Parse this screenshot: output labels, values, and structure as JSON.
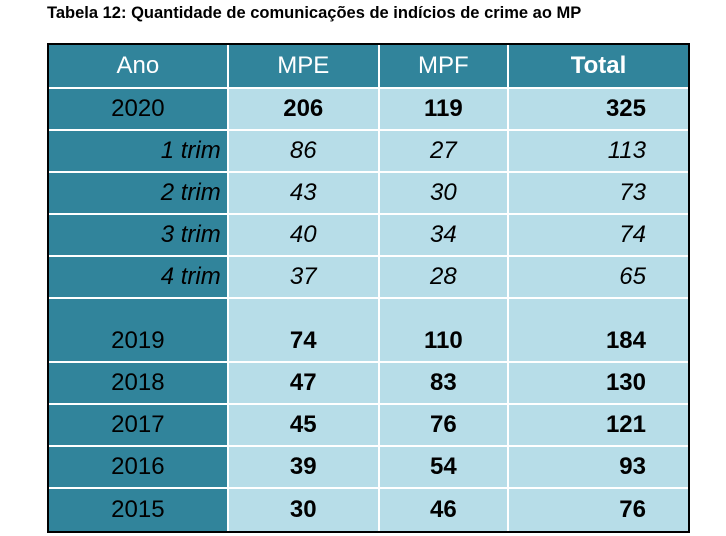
{
  "caption": "Tabela 12: Quantidade de comunicações de indícios de crime ao MP",
  "columns": {
    "ano": "Ano",
    "mpe": "MPE",
    "mpf": "MPF",
    "total": "Total"
  },
  "rows": [
    {
      "label": "2020",
      "mpe": "206",
      "mpf": "119",
      "total": "325"
    },
    {
      "label": "1 trim",
      "mpe": "86",
      "mpf": "27",
      "total": "113"
    },
    {
      "label": "2 trim",
      "mpe": "43",
      "mpf": "30",
      "total": "73"
    },
    {
      "label": "3 trim",
      "mpe": "40",
      "mpf": "34",
      "total": "74"
    },
    {
      "label": "4 trim",
      "mpe": "37",
      "mpf": "28",
      "total": "65"
    },
    {
      "label": "2019",
      "mpe": "74",
      "mpf": "110",
      "total": "184"
    },
    {
      "label": "2018",
      "mpe": "47",
      "mpf": "83",
      "total": "130"
    },
    {
      "label": "2017",
      "mpe": "45",
      "mpf": "76",
      "total": "121"
    },
    {
      "label": "2016",
      "mpe": "39",
      "mpf": "54",
      "total": "93"
    },
    {
      "label": "2015",
      "mpe": "30",
      "mpf": "46",
      "total": "76"
    }
  ],
  "colors": {
    "header_bg": "#31849b",
    "cell_bg": "#b7dde8"
  }
}
